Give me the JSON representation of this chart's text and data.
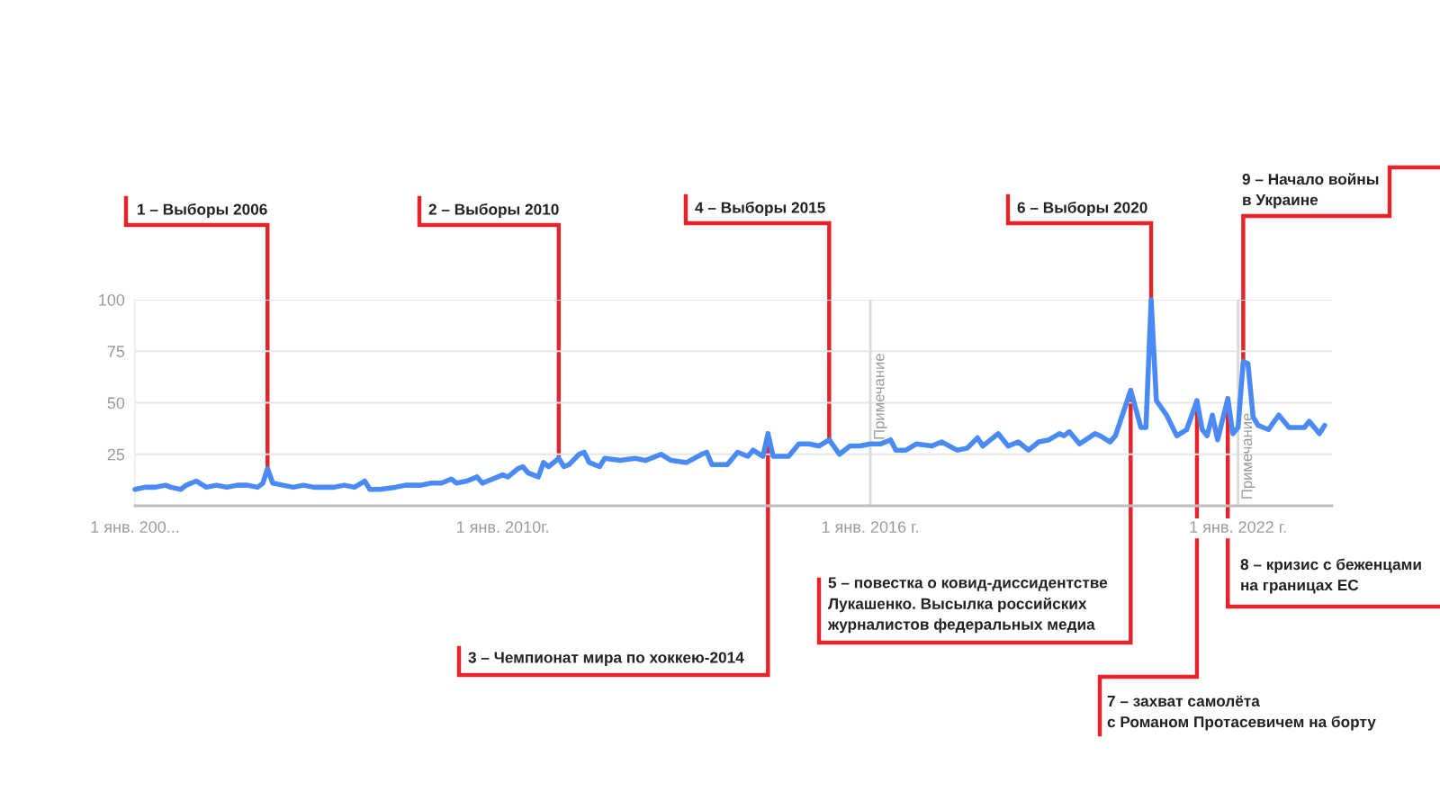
{
  "chart_data": {
    "type": "line",
    "color": "#4a8af4",
    "line_style": "solid",
    "x": [
      "2004-01",
      "2004-03",
      "2004-05",
      "2004-07",
      "2004-08",
      "2004-10",
      "2004-11",
      "2005-01",
      "2005-03",
      "2005-05",
      "2005-07",
      "2005-09",
      "2005-11",
      "2006-01",
      "2006-02",
      "2006-03",
      "2006-04",
      "2006-06",
      "2006-08",
      "2006-10",
      "2006-12",
      "2007-02",
      "2007-04",
      "2007-06",
      "2007-08",
      "2007-10",
      "2007-11",
      "2008-01",
      "2008-04",
      "2008-06",
      "2008-09",
      "2008-11",
      "2009-01",
      "2009-03",
      "2009-04",
      "2009-06",
      "2009-08",
      "2009-09",
      "2009-11",
      "2010-01",
      "2010-02",
      "2010-04",
      "2010-05",
      "2010-06",
      "2010-08",
      "2010-09",
      "2010-10",
      "2010-12",
      "2011-01",
      "2011-02",
      "2011-04",
      "2011-05",
      "2011-06",
      "2011-08",
      "2011-09",
      "2011-12",
      "2012-03",
      "2012-05",
      "2012-08",
      "2012-10",
      "2013-01",
      "2013-04",
      "2013-05",
      "2013-06",
      "2013-09",
      "2013-11",
      "2014-01",
      "2014-02",
      "2014-04",
      "2014-05",
      "2014-06",
      "2014-09",
      "2014-11",
      "2015-01",
      "2015-03",
      "2015-05",
      "2015-07",
      "2015-09",
      "2015-11",
      "2016-01",
      "2016-03",
      "2016-05",
      "2016-06",
      "2016-08",
      "2016-10",
      "2017-01",
      "2017-03",
      "2017-06",
      "2017-08",
      "2017-10",
      "2017-11",
      "2018-02",
      "2018-04",
      "2018-06",
      "2018-08",
      "2018-10",
      "2018-12",
      "2019-02",
      "2019-03",
      "2019-04",
      "2019-06",
      "2019-09",
      "2019-10",
      "2019-12",
      "2020-01",
      "2020-04",
      "2020-06",
      "2020-07",
      "2020-08",
      "2020-09",
      "2020-11",
      "2021-01",
      "2021-03",
      "2021-05",
      "2021-06",
      "2021-07",
      "2021-08",
      "2021-09",
      "2021-11",
      "2021-12",
      "2022-01",
      "2022-02",
      "2022-03",
      "2022-04",
      "2022-05",
      "2022-06",
      "2022-07",
      "2022-09",
      "2022-11",
      "2023-02",
      "2023-03",
      "2023-05",
      "2023-06"
    ],
    "values": [
      8,
      9,
      9,
      10,
      9,
      8,
      10,
      12,
      9,
      10,
      9,
      10,
      10,
      9,
      11,
      18,
      11,
      10,
      9,
      10,
      9,
      9,
      9,
      10,
      9,
      12,
      8,
      8,
      9,
      10,
      10,
      11,
      11,
      13,
      11,
      12,
      14,
      11,
      13,
      15,
      14,
      18,
      19,
      16,
      14,
      21,
      19,
      23,
      19,
      20,
      25,
      26,
      21,
      19,
      23,
      22,
      23,
      22,
      25,
      22,
      21,
      25,
      26,
      20,
      20,
      26,
      24,
      27,
      24,
      35,
      24,
      24,
      30,
      30,
      29,
      32,
      25,
      29,
      29,
      30,
      30,
      32,
      27,
      27,
      30,
      29,
      31,
      27,
      28,
      33,
      29,
      35,
      29,
      31,
      27,
      31,
      32,
      35,
      34,
      36,
      30,
      35,
      34,
      31,
      34,
      56,
      38,
      38,
      100,
      51,
      44,
      34,
      37,
      51,
      37,
      34,
      44,
      32,
      52,
      35,
      38,
      70,
      69,
      43,
      39,
      38,
      37,
      44,
      38,
      38,
      41,
      35,
      39
    ],
    "xlim": [
      "2004-01-01",
      "2023-07-15"
    ],
    "xticks": [
      {
        "value": "2004-01-01",
        "label": "1 янв. 200..."
      },
      {
        "value": "2010-01-01",
        "label": "1 янв. 2010г."
      },
      {
        "value": "2016-01-01",
        "label": "1 янв. 2016 г."
      },
      {
        "value": "2022-01-01",
        "label": "1 янв. 2022 г."
      }
    ],
    "ylim": [
      0,
      100
    ],
    "yticks": [
      25,
      50,
      75,
      100
    ],
    "grid": "y",
    "ref_lines": [
      {
        "axis": "x",
        "value": "2016-01-01",
        "label": "Примечание",
        "color": "#dadada"
      },
      {
        "axis": "x",
        "value": "2022-01-01",
        "label": "Примечание",
        "color": "#dadada"
      }
    ],
    "annotations": [
      {
        "text": "1 – Выборы 2006",
        "x": "2006-03",
        "y": 18
      },
      {
        "text": "2 – Выборы 2010",
        "x": "2010-12",
        "y": 23
      },
      {
        "text": "3 – Чемпионат мира по хоккею-2014",
        "x": "2014-05",
        "y": 35
      },
      {
        "text": "4 – Выборы 2015",
        "x": "2015-05",
        "y": 32
      },
      {
        "text": "5 – повестка о ковид-диссидентстве\nЛукашенко. Высылка российских\nжурналистов федеральных медиа",
        "x": "2020-04",
        "y": 56
      },
      {
        "text": "6 – Выборы 2020",
        "x": "2020-08",
        "y": 100
      },
      {
        "text": "7 – захват самолёта\nс Романом Протасевичем на борту",
        "x": "2021-05",
        "y": 51
      },
      {
        "text": "8 – кризис с беженцами\nна границах ЕС",
        "x": "2021-11",
        "y": 52
      },
      {
        "text": "9 – Начало войны\nв Украине",
        "x": "2022-02",
        "y": 70
      }
    ]
  }
}
